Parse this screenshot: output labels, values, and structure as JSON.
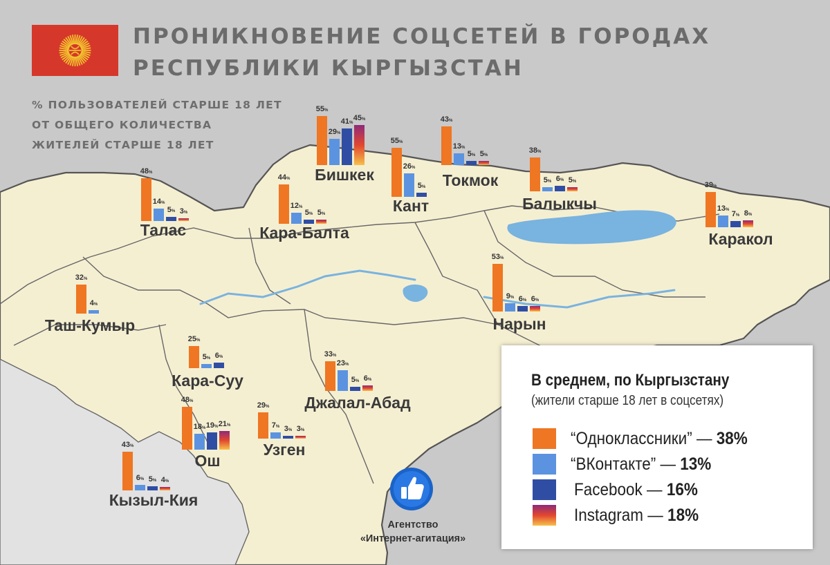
{
  "title_lines": [
    "ПРОНИКНОВЕНИЕ СОЦСЕТЕЙ В ГОРОДАХ",
    "РЕСПУБЛИКИ КЫРГЫЗСТАН"
  ],
  "subtitle_lines": [
    "% ПОЛЬЗОВАТЕЛЕЙ СТАРШЕ 18 ЛЕТ",
    "ОТ ОБЩЕГО КОЛИЧЕСТВА",
    "ЖИТЕЛЕЙ СТАРШЕ 18 ЛЕТ"
  ],
  "flag": {
    "field_color": "#d6372b",
    "sun_color": "#f2c12e",
    "emblem": "sun-tunduk"
  },
  "percent_symbol": "%",
  "networks": [
    {
      "key": "ok",
      "name": "“Одноклассники”",
      "average": "38%",
      "color": "#ef7622"
    },
    {
      "key": "vk",
      "name": "“ВКонтакте”",
      "average": "13%",
      "color": "#5b93e0"
    },
    {
      "key": "fb",
      "name": "Facebook",
      "average": "16%",
      "color": "#2f4ea3"
    },
    {
      "key": "ig",
      "name": "Instagram",
      "average": "18%",
      "colors": [
        "#f6c04a",
        "#e2462f",
        "#8e2a7a"
      ]
    }
  ],
  "cities": [
    {
      "name": "Бишкек",
      "values": [
        55,
        29,
        41,
        45
      ]
    },
    {
      "name": "Кант",
      "values": [
        55,
        26,
        5
      ]
    },
    {
      "name": "Токмок",
      "values": [
        43,
        13,
        5,
        5
      ]
    },
    {
      "name": "Балыкчы",
      "values": [
        38,
        5,
        6,
        5
      ]
    },
    {
      "name": "Каракол",
      "values": [
        39,
        13,
        7,
        8
      ]
    },
    {
      "name": "Талас",
      "values": [
        48,
        14,
        5,
        3
      ]
    },
    {
      "name": "Кара-Балта",
      "values": [
        44,
        12,
        5,
        5
      ]
    },
    {
      "name": "Таш-Кумыр",
      "values": [
        32,
        4
      ]
    },
    {
      "name": "Нарын",
      "values": [
        53,
        9,
        6,
        6
      ]
    },
    {
      "name": "Кара-Суу",
      "values": [
        25,
        5,
        6
      ]
    },
    {
      "name": "Джалал-Абад",
      "values": [
        33,
        23,
        5,
        6
      ]
    },
    {
      "name": "Ош",
      "values": [
        48,
        18,
        19,
        21
      ]
    },
    {
      "name": "Узген",
      "values": [
        29,
        7,
        3,
        3
      ]
    },
    {
      "name": "Кызыл-Кия",
      "values": [
        43,
        6,
        5,
        4
      ]
    }
  ],
  "legend": {
    "title": "В среднем, по Кыргызстану",
    "subtitle": "(жители старше 18 лет в соцсетях)",
    "dash": "—"
  },
  "agency": {
    "line1": "Агентство",
    "line2": "«Интернет-агитация»",
    "logo_icon": "thumbs-up-icon"
  },
  "colors": {
    "background": "#c9c9c9",
    "land": "#f5efd2",
    "water": "#79b3df",
    "border": "#555555",
    "title": "#6b6b6b"
  }
}
